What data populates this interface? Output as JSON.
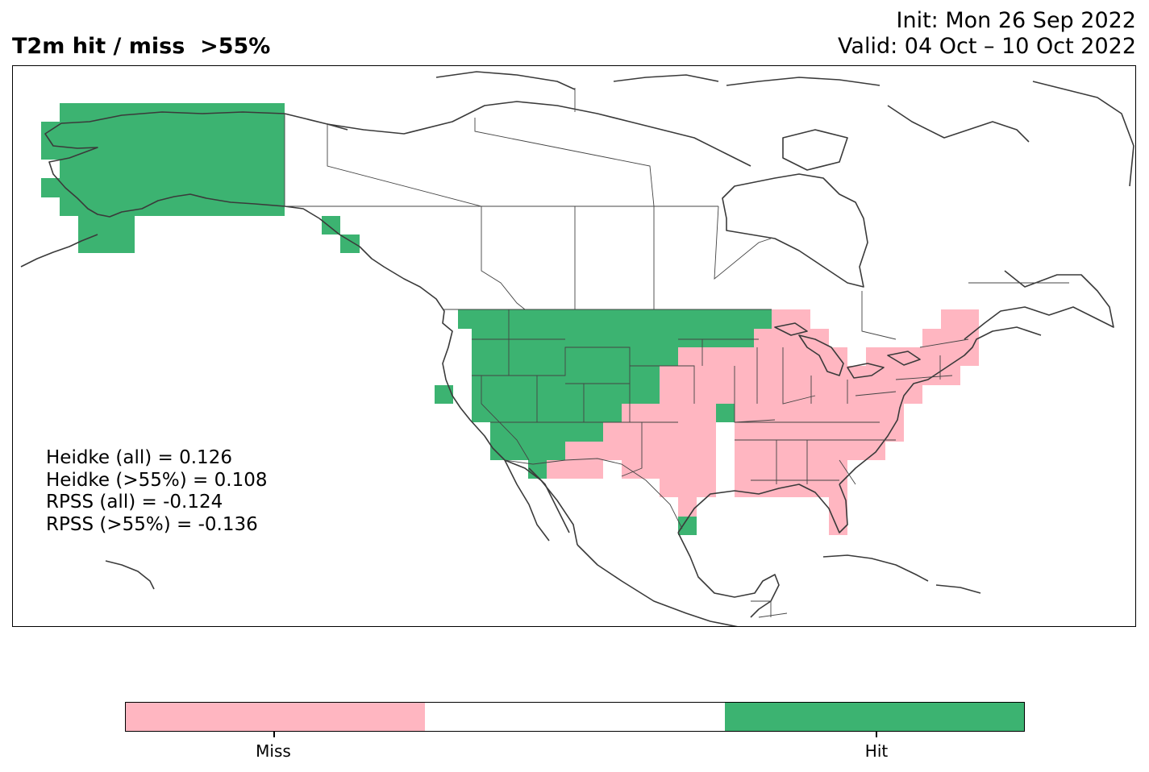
{
  "title": "T2m hit / miss  >55%",
  "init_label": "Init: Mon 26 Sep 2022",
  "valid_label": "Valid: 04 Oct – 10 Oct 2022",
  "stats": {
    "heidke_all": "Heidke (all) = 0.126",
    "heidke_55": "Heidke (>55%) = 0.108",
    "rpss_all": "RPSS (all) = -0.124",
    "rpss_55": "RPSS (>55%) = -0.136"
  },
  "colors": {
    "miss": "#ffb6c1",
    "neutral": "#ffffff",
    "hit": "#3cb371",
    "border": "#3a3a3a"
  },
  "legend": {
    "miss_label": "Miss",
    "hit_label": "Hit"
  },
  "regions": [
    {
      "name": "Alaska",
      "outcome": "hit"
    },
    {
      "name": "Southeast Alaska panhandle",
      "outcome": "hit"
    },
    {
      "name": "Northwest & Northern Plains US",
      "outcome": "hit"
    },
    {
      "name": "Southwest US",
      "outcome": "hit"
    },
    {
      "name": "Oklahoma / East Texas",
      "outcome": "hit"
    },
    {
      "name": "Central Coast California",
      "outcome": "hit"
    },
    {
      "name": "Central & Eastern US",
      "outcome": "miss"
    },
    {
      "name": "Southeast US & Florida",
      "outcome": "miss"
    },
    {
      "name": "Northeast US",
      "outcome": "miss"
    },
    {
      "name": "West Texas / New Mexico",
      "outcome": "miss"
    }
  ]
}
